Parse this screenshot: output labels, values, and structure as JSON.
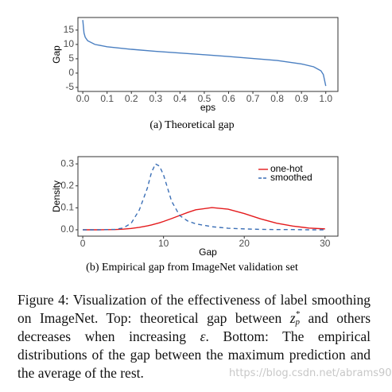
{
  "chart_data": [
    {
      "type": "line",
      "caption": "(a) Theoretical gap",
      "xlabel": "eps",
      "ylabel": "Gap",
      "color": "#4a7fc1",
      "grid": false,
      "x": [
        0.0,
        0.005,
        0.01,
        0.02,
        0.05,
        0.1,
        0.2,
        0.3,
        0.4,
        0.5,
        0.6,
        0.7,
        0.8,
        0.9,
        0.95,
        0.98,
        0.99,
        1.0
      ],
      "values": [
        18.5,
        14,
        12.5,
        11.3,
        10,
        9.2,
        8.3,
        7.6,
        7,
        6.4,
        5.8,
        5.1,
        4.4,
        3.2,
        2.2,
        0.8,
        -0.5,
        -4.5
      ],
      "xlim": [
        -0.02,
        1.05
      ],
      "xticks": [
        {
          "value": 0,
          "label": "0.0"
        },
        0.1,
        0.2,
        0.3,
        0.4,
        0.5,
        0.6,
        0.7,
        0.8,
        0.9,
        {
          "value": 1,
          "label": "1.0"
        }
      ],
      "ylim": [
        -6.4,
        19.4
      ],
      "yticks": [
        -5,
        0,
        5,
        10,
        15
      ]
    },
    {
      "type": "line",
      "caption": "(b) Empirical gap from ImageNet validation set",
      "xlabel": "Gap",
      "ylabel": "Density",
      "grid": false,
      "legend": "top-right",
      "x": [
        0,
        2,
        4,
        5,
        6,
        7,
        8,
        8.5,
        9,
        9.5,
        10,
        11,
        12,
        13,
        14,
        16,
        18,
        20,
        22,
        24,
        26,
        28,
        30
      ],
      "series": [
        {
          "name": "one-hot",
          "color": "#e41a1c",
          "style": "solid",
          "values": [
            0,
            0,
            0.001,
            0.003,
            0.006,
            0.011,
            0.018,
            0.022,
            0.027,
            0.032,
            0.038,
            0.051,
            0.065,
            0.079,
            0.091,
            0.101,
            0.094,
            0.074,
            0.05,
            0.03,
            0.017,
            0.008,
            0.004
          ]
        },
        {
          "name": "smoothed",
          "color": "#3b6fb6",
          "style": "dashed",
          "values": [
            0,
            0,
            0.002,
            0.008,
            0.03,
            0.09,
            0.19,
            0.26,
            0.3,
            0.29,
            0.25,
            0.13,
            0.065,
            0.04,
            0.027,
            0.014,
            0.007,
            0.004,
            0.002,
            0.001,
            0.001,
            0,
            0
          ]
        }
      ],
      "xlim": [
        -0.6,
        31.6
      ],
      "xticks": [
        0,
        10,
        20,
        30
      ],
      "ylim": [
        -0.029,
        0.333
      ],
      "yticks": [
        {
          "value": 0,
          "label": "0.0"
        },
        0.1,
        0.2,
        0.3
      ]
    }
  ],
  "figure_caption": {
    "label": "Figure 4:",
    "text_1": "Visualization of the effectiveness of label smoothing on ImageNet. Top: theoretical gap between",
    "math_base": "z",
    "math_sub": "p",
    "math_sup": "*",
    "text_2": "and others decreases when increasing",
    "epsilon": "ε",
    "text_3": ". Bottom: The empirical distributions of the gap between the maximum prediction and the average of the rest."
  },
  "watermark": "https://blog.csdn.net/abrams90"
}
